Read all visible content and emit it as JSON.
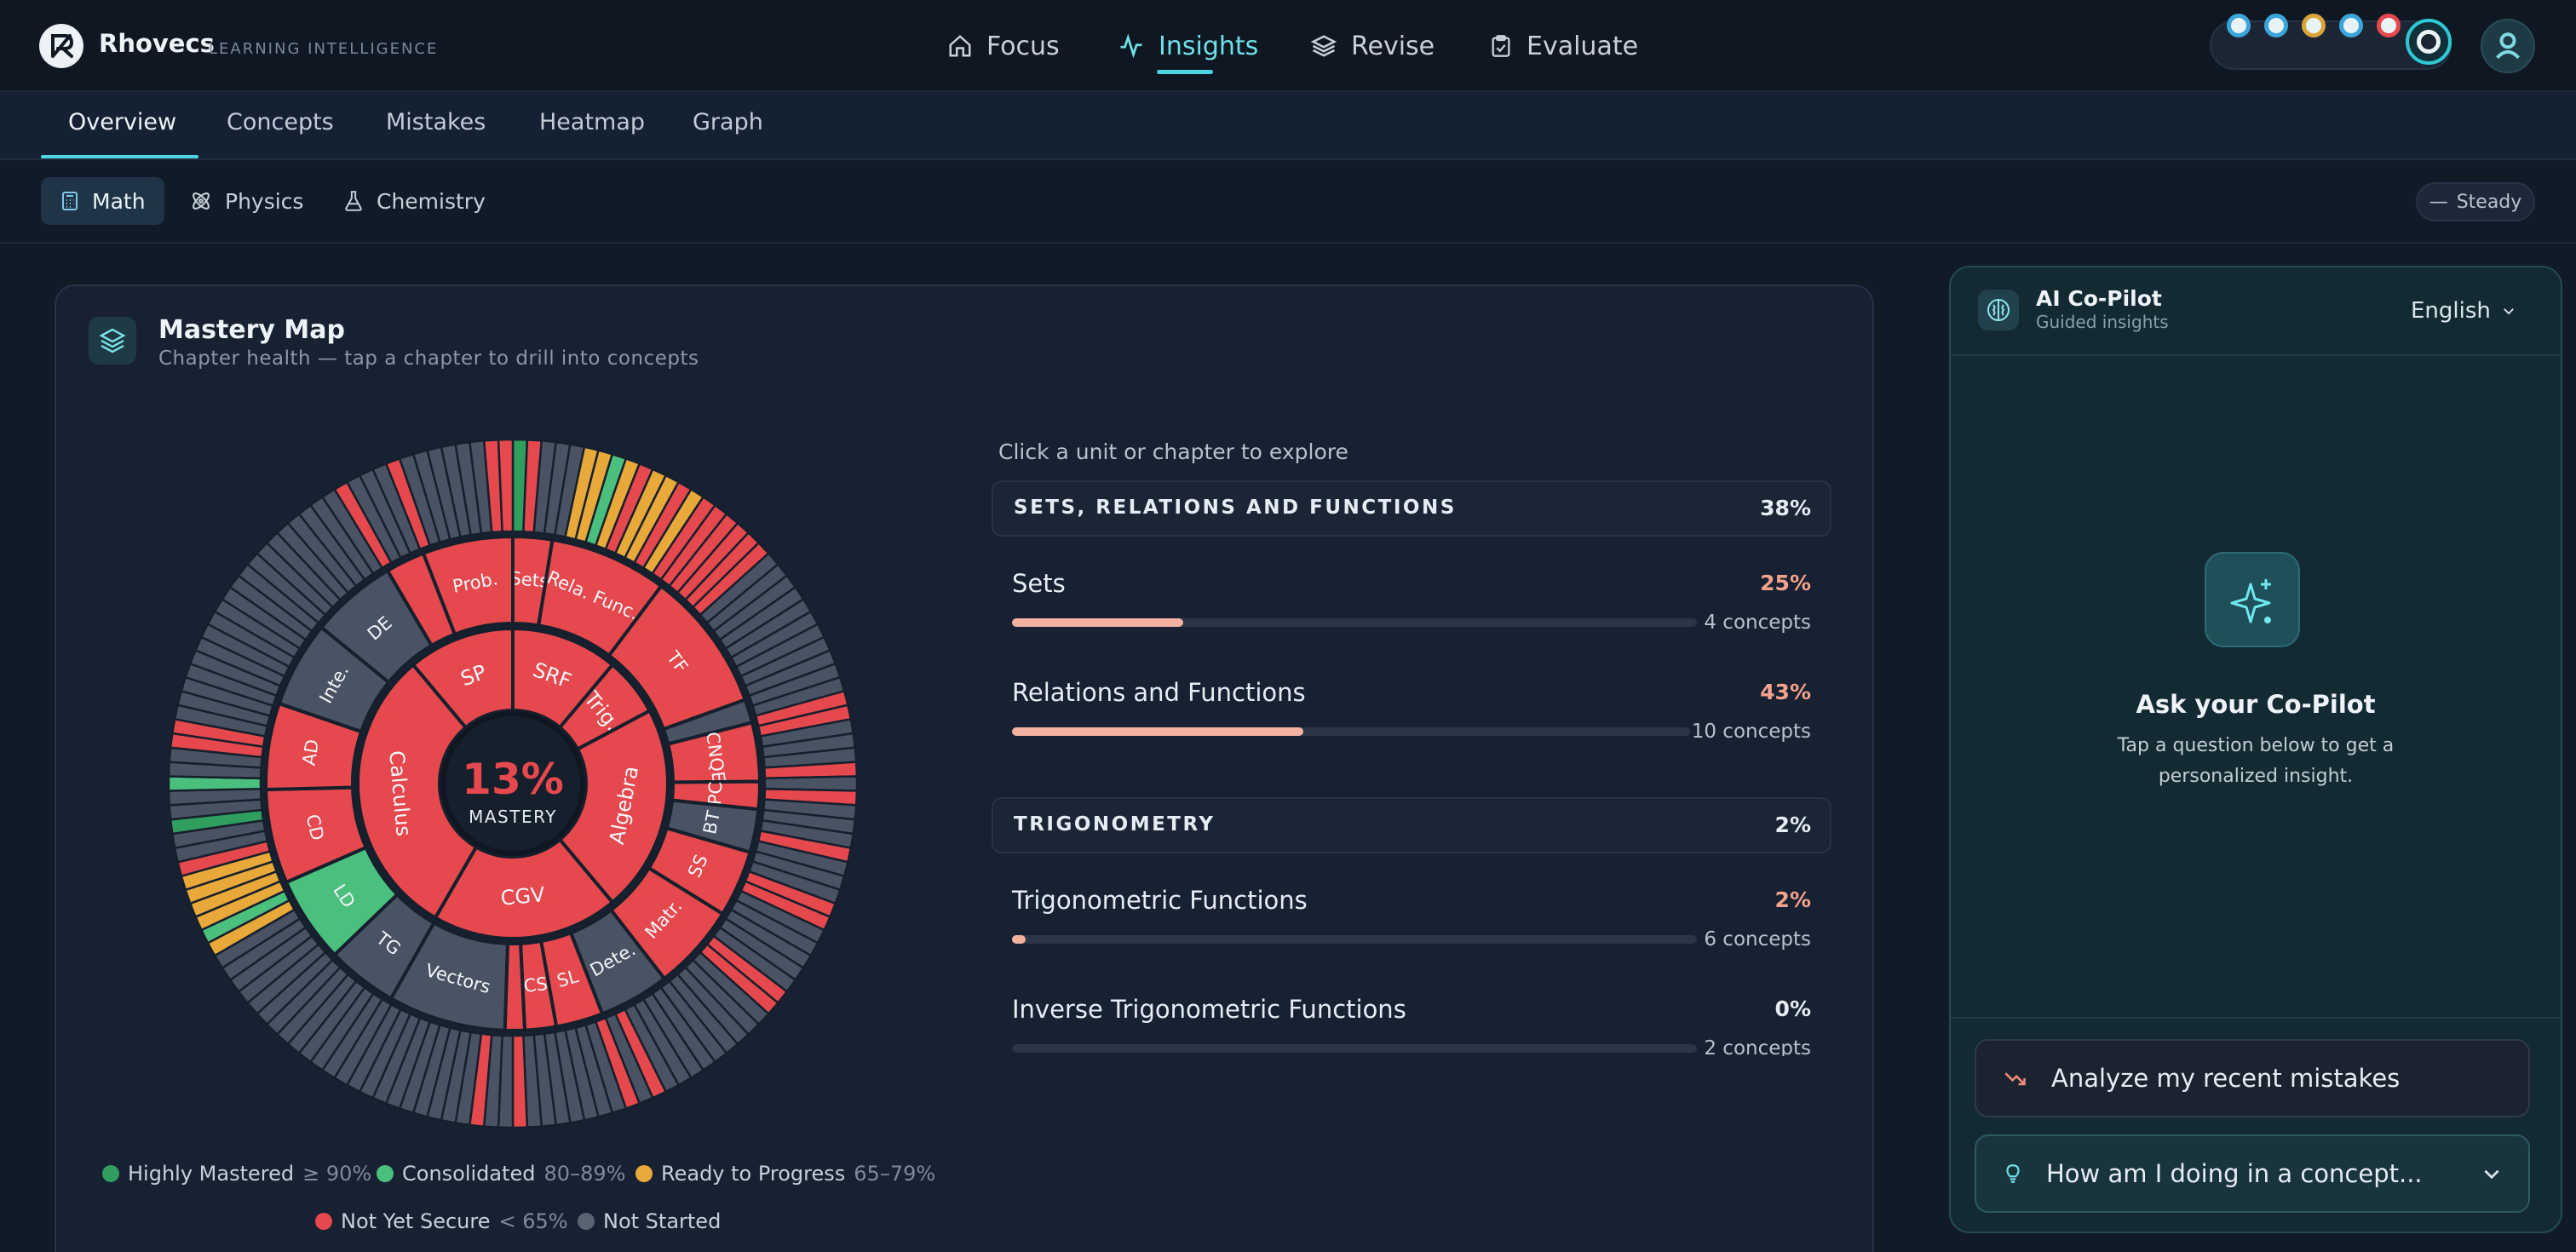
{
  "brand": {
    "name": "Rhovecs",
    "tagline": "LEARNING INTELLIGENCE"
  },
  "nav": {
    "items": [
      {
        "label": "Focus",
        "icon": "home-icon"
      },
      {
        "label": "Insights",
        "icon": "activity-icon",
        "active": true
      },
      {
        "label": "Revise",
        "icon": "layers-icon"
      },
      {
        "label": "Evaluate",
        "icon": "clipboard-icon"
      }
    ]
  },
  "status_dots": [
    "#3aa6d9",
    "#3aa6d9",
    "#d9a53a",
    "#3aa6d9",
    "#e5484d",
    "#2fc9d6"
  ],
  "tabs": [
    "Overview",
    "Concepts",
    "Mistakes",
    "Heatmap",
    "Graph"
  ],
  "subjects": [
    {
      "label": "Math",
      "icon": "calculator-icon",
      "active": true
    },
    {
      "label": "Physics",
      "icon": "atom-icon"
    },
    {
      "label": "Chemistry",
      "icon": "flask-icon"
    }
  ],
  "trend_badge": "Steady",
  "mastery": {
    "title": "Mastery Map",
    "subtitle": "Chapter health — tap a chapter to drill into concepts",
    "center_value": "13%",
    "center_label": "MASTERY",
    "inner_units": [
      {
        "label": "SRF",
        "span": 40,
        "status": "not-secure"
      },
      {
        "label": "Trig.",
        "span": 22,
        "status": "not-secure"
      },
      {
        "label": "Algebra",
        "span": 78,
        "status": "not-secure"
      },
      {
        "label": "CGV",
        "span": 70,
        "status": "not-secure"
      },
      {
        "label": "Calculus",
        "span": 110,
        "status": "not-secure"
      },
      {
        "label": "SP",
        "span": 40,
        "status": "not-secure"
      }
    ],
    "chapters": [
      {
        "label": "Sets",
        "span": 10,
        "status": "not-secure"
      },
      {
        "label": "Rela. Func.",
        "span": 30,
        "status": "not-secure"
      },
      {
        "label": "TF",
        "span": 36,
        "status": "not-secure"
      },
      {
        "label": "",
        "span": 6,
        "status": "not-started"
      },
      {
        "label": "CNQE",
        "span": 15,
        "status": "not-secure"
      },
      {
        "label": "PC",
        "span": 7,
        "status": "not-secure"
      },
      {
        "label": "BT",
        "span": 11,
        "status": "not-started"
      },
      {
        "label": "SS",
        "span": 17,
        "status": "not-secure"
      },
      {
        "label": "Matr.",
        "span": 22,
        "status": "not-secure"
      },
      {
        "label": "Dete.",
        "span": 18,
        "status": "not-started"
      },
      {
        "label": "SL",
        "span": 12,
        "status": "not-secure"
      },
      {
        "label": "CS",
        "span": 8,
        "status": "not-secure"
      },
      {
        "label": "",
        "span": 5,
        "status": "not-secure"
      },
      {
        "label": "Vectors",
        "span": 30,
        "status": "not-started"
      },
      {
        "label": "TG",
        "span": 18,
        "status": "not-started"
      },
      {
        "label": "LD",
        "span": 22,
        "status": "consolidated"
      },
      {
        "label": "CD",
        "span": 24,
        "status": "not-secure"
      },
      {
        "label": "AD",
        "span": 22,
        "status": "not-secure"
      },
      {
        "label": "Inte.",
        "span": 22,
        "status": "not-started"
      },
      {
        "label": "DE",
        "span": 22,
        "status": "not-started"
      },
      {
        "label": "",
        "span": 10,
        "status": "not-secure"
      },
      {
        "label": "Prob.",
        "span": 23,
        "status": "not-secure"
      }
    ],
    "concepts": [
      "Z",
      "R",
      "N",
      "N",
      "N",
      "Y",
      "Y",
      "G",
      "Y",
      "R",
      "Y",
      "Y",
      "R",
      "Y",
      "R",
      "R",
      "R",
      "R",
      "R",
      "R",
      "N",
      "N",
      "N",
      "N",
      "N",
      "N",
      "N",
      "N",
      "N",
      "N",
      "N",
      "R",
      "R",
      "N",
      "N",
      "N",
      "R",
      "N",
      "R",
      "N",
      "N",
      "N",
      "R",
      "N",
      "N",
      "N",
      "R",
      "R",
      "N",
      "N",
      "N",
      "N",
      "N",
      "R",
      "R",
      "N",
      "N",
      "N",
      "N",
      "N",
      "N",
      "N",
      "N",
      "N",
      "R",
      "N",
      "R",
      "N",
      "N",
      "N",
      "N",
      "N",
      "N",
      "N",
      "R",
      "N",
      "N",
      "R",
      "N",
      "N",
      "N",
      "N",
      "N",
      "N",
      "N",
      "N",
      "N",
      "N",
      "N",
      "N",
      "N",
      "N",
      "N",
      "N",
      "N",
      "N",
      "N",
      "N",
      "N",
      "N",
      "Y",
      "G",
      "Y",
      "Y",
      "Y",
      "Y",
      "R",
      "N",
      "N",
      "Z",
      "N",
      "N",
      "G",
      "N",
      "N",
      "R",
      "R",
      "N",
      "N",
      "N",
      "N",
      "N",
      "N",
      "N",
      "N",
      "N",
      "N",
      "N",
      "N",
      "N",
      "N",
      "N",
      "N",
      "N",
      "N",
      "N",
      "N",
      "R",
      "N",
      "N",
      "N",
      "R",
      "N",
      "N",
      "N",
      "N",
      "N",
      "N",
      "R",
      "R"
    ],
    "status_colors": {
      "G": "#4bbf7e",
      "Z": "#2f9e5e",
      "Y": "#e8a93a",
      "R": "#e5484d",
      "N": "#4a5363"
    },
    "unit_colors": {
      "not-secure": "#e5484d",
      "not-started": "#4a5363",
      "consolidated": "#4bbf7e"
    },
    "legend": [
      {
        "label": "Highly Mastered",
        "range": "≥ 90%",
        "color": "#2f9e5e"
      },
      {
        "label": "Consolidated",
        "range": "80–89%",
        "color": "#4bbf7e"
      },
      {
        "label": "Ready to Progress",
        "range": "65–79%",
        "color": "#e8a93a"
      },
      {
        "label": "Not Yet Secure",
        "range": "< 65%",
        "color": "#e5484d"
      },
      {
        "label": "Not Started",
        "range": "",
        "color": "#5a6372"
      }
    ]
  },
  "explore": {
    "hint": "Click a unit or chapter to explore",
    "units": [
      {
        "name": "SETS, RELATIONS AND FUNCTIONS",
        "pct": "38%",
        "chapters": [
          {
            "name": "Sets",
            "pct": "25%",
            "progress": 0.25,
            "count": "4 concepts"
          },
          {
            "name": "Relations and Functions",
            "pct": "43%",
            "progress": 0.43,
            "count": "10 concepts"
          }
        ]
      },
      {
        "name": "TRIGONOMETRY",
        "pct": "2%",
        "chapters": [
          {
            "name": "Trigonometric Functions",
            "pct": "2%",
            "progress": 0.02,
            "count": "6 concepts"
          },
          {
            "name": "Inverse Trigonometric Functions",
            "pct": "0%",
            "progress": 0,
            "count": "2 concepts"
          }
        ]
      }
    ]
  },
  "copilot": {
    "title": "AI Co-Pilot",
    "subtitle": "Guided insights",
    "language": "English",
    "ask_title": "Ask your Co-Pilot",
    "ask_hint": "Tap a question below to get a personalized insight.",
    "buttons": [
      {
        "label": "Analyze my recent mistakes",
        "icon": "trending-down-icon"
      },
      {
        "label": "How am I doing in a concept...",
        "icon": "lightbulb-icon"
      }
    ]
  }
}
